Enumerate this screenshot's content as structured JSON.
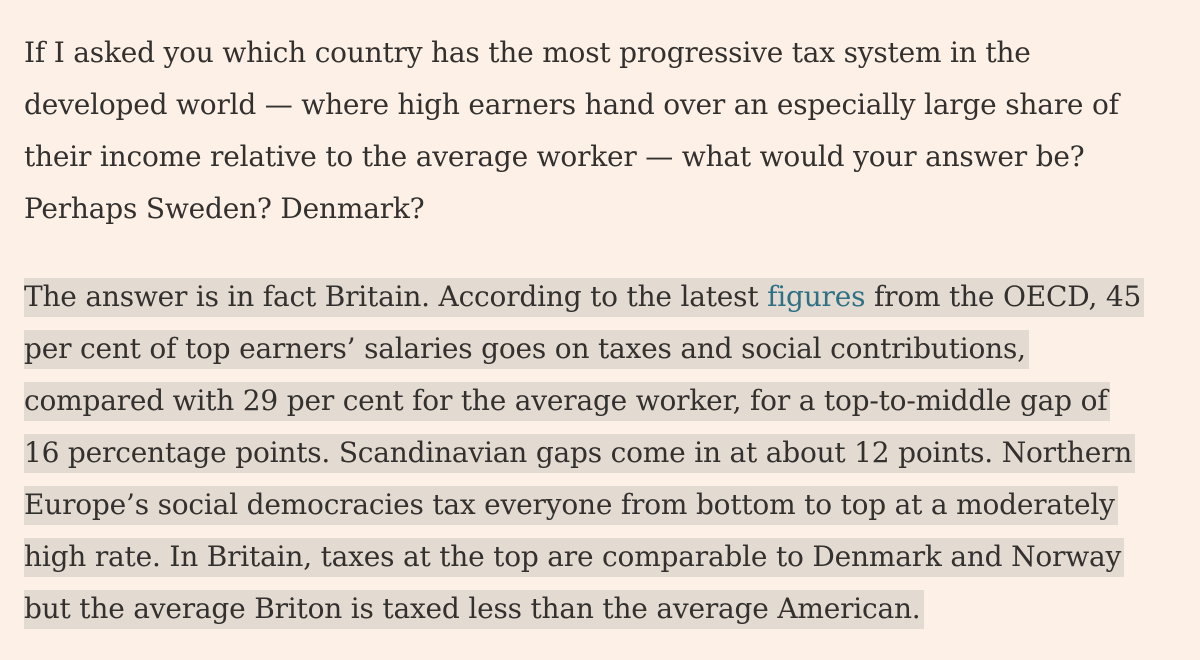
{
  "article": {
    "paragraph_1": {
      "lines": [
        "If I asked you which country has the most progressive tax system in the",
        "developed world — where high earners hand over an especially large share of",
        "their income relative to the average worker — what would your answer be?",
        "Perhaps Sweden? Denmark?"
      ]
    },
    "paragraph_2": {
      "line_1_before_link": "The answer is in fact Britain. According to the latest ",
      "link_text": "figures",
      "line_1_after_link": " from the OECD, 45",
      "lines": [
        "per cent of top earners’ salaries goes on taxes and social contributions,",
        "compared with 29 per cent for the average worker, for a top-to-middle gap of",
        "16 percentage points. Scandinavian gaps come in at about 12 points. Northern",
        "Europe’s social democracies tax everyone from bottom to top at a moderately",
        "high rate. In Britain, taxes at the top are comparable to Denmark and Norway",
        "but the average Briton is taxed less than the average American."
      ]
    }
  },
  "colors": {
    "background": "#fdf1e7",
    "text": "#33302e",
    "highlight": "#e3dbd2",
    "link": "#2e7184"
  }
}
